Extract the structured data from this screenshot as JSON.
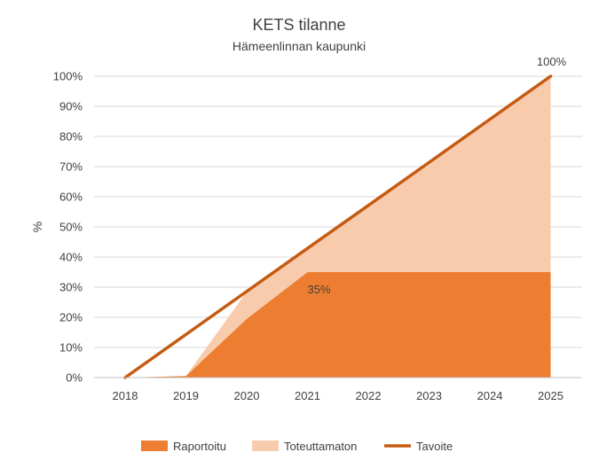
{
  "chart_data": {
    "type": "area",
    "title": "KETS tilanne",
    "subtitle": "Hämeenlinnan kaupunki",
    "ylabel": "%",
    "xlabel": "",
    "ylim": [
      0,
      100
    ],
    "y_ticks": [
      "0%",
      "10%",
      "20%",
      "30%",
      "40%",
      "50%",
      "60%",
      "70%",
      "80%",
      "90%",
      "100%"
    ],
    "categories": [
      "2018",
      "2019",
      "2020",
      "2021",
      "2022",
      "2023",
      "2024",
      "2025"
    ],
    "series": [
      {
        "name": "Raportoitu",
        "type": "area",
        "color": "#ED7D31",
        "values": [
          0,
          0.5,
          19.5,
          35,
          35,
          35,
          35,
          35
        ]
      },
      {
        "name": "Toteuttamaton",
        "type": "area",
        "color": "#F8CBAD",
        "values": [
          0,
          0,
          9,
          8,
          22,
          36,
          51,
          65
        ]
      },
      {
        "name": "Tavoite",
        "type": "line",
        "color": "#C55A11",
        "values": [
          0,
          14.3,
          28.6,
          42.9,
          57.1,
          71.4,
          85.7,
          100
        ]
      }
    ],
    "data_labels": [
      {
        "text": "35%",
        "category": "2021",
        "value": 35
      },
      {
        "text": "100%",
        "category": "2025",
        "value": 100
      }
    ],
    "grid": true,
    "legend_position": "bottom"
  }
}
